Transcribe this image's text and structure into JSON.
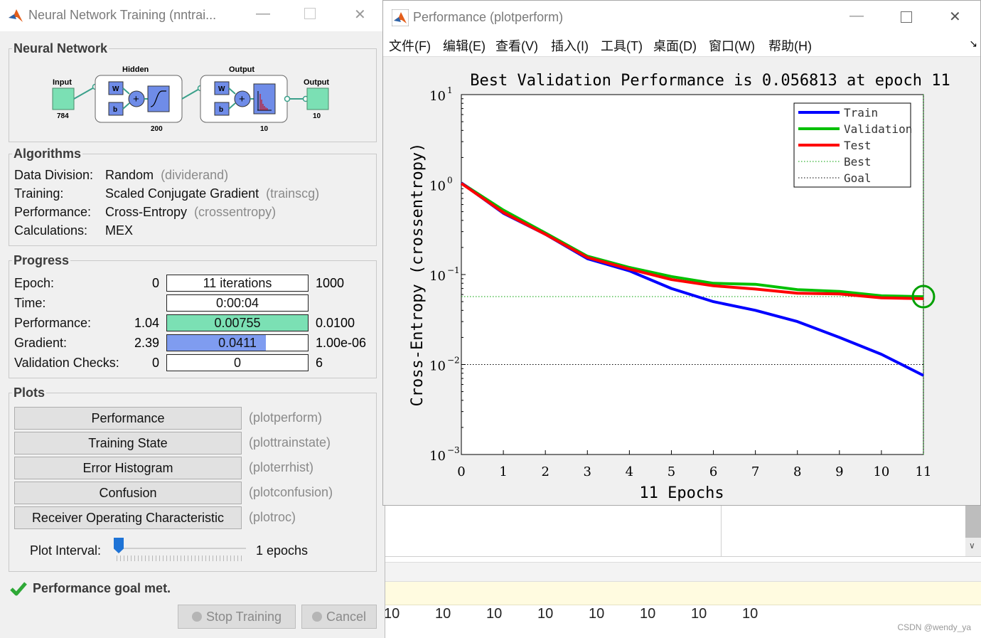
{
  "nntraintool": {
    "title": "Neural Network Training (nntrai...",
    "network": {
      "legend": "Neural Network",
      "input_label": "Input",
      "input_size": "784",
      "hidden_label": "Hidden",
      "hidden_size": "200",
      "output_layer_label": "Output",
      "output_layer_size": "10",
      "output_label": "Output",
      "output_size": "10",
      "w": "W",
      "b": "b",
      "plus": "+"
    },
    "algorithms": {
      "legend": "Algorithms",
      "rows": [
        {
          "label": "Data Division:",
          "value": "Random",
          "fn": "(dividerand)"
        },
        {
          "label": "Training:",
          "value": "Scaled Conjugate Gradient",
          "fn": "(trainscg)"
        },
        {
          "label": "Performance:",
          "value": "Cross-Entropy",
          "fn": "(crossentropy)"
        },
        {
          "label": "Calculations:",
          "value": "MEX",
          "fn": ""
        }
      ]
    },
    "progress": {
      "legend": "Progress",
      "rows": [
        {
          "label": "Epoch:",
          "left": "0",
          "value": "11 iterations",
          "right": "1000",
          "fill": 0.011,
          "color": "#ffffff"
        },
        {
          "label": "Time:",
          "left": "",
          "value": "0:00:04",
          "right": "",
          "fill": 0,
          "color": "#ffffff"
        },
        {
          "label": "Performance:",
          "left": "1.04",
          "value": "0.00755",
          "right": "0.0100",
          "fill": 1.0,
          "color": "#7be0b4"
        },
        {
          "label": "Gradient:",
          "left": "2.39",
          "value": "0.0411",
          "right": "1.00e-06",
          "fill": 0.7,
          "color": "#7f9cf0"
        },
        {
          "label": "Validation Checks:",
          "left": "0",
          "value": "0",
          "right": "6",
          "fill": 0,
          "color": "#ffffff"
        }
      ]
    },
    "plots": {
      "legend": "Plots",
      "buttons": [
        {
          "label": "Performance",
          "cmd": "(plotperform)"
        },
        {
          "label": "Training State",
          "cmd": "(plottrainstate)"
        },
        {
          "label": "Error Histogram",
          "cmd": "(ploterrhist)"
        },
        {
          "label": "Confusion",
          "cmd": "(plotconfusion)"
        },
        {
          "label": "Receiver Operating Characteristic",
          "cmd": "(plotroc)"
        }
      ],
      "interval_label": "Plot Interval:",
      "interval_value": "1 epochs"
    },
    "status": "Performance goal met.",
    "stop_label": "Stop Training",
    "cancel_label": "Cancel"
  },
  "plotperform": {
    "title": "Performance (plotperform)",
    "menu": [
      "文件(F)",
      "编辑(E)",
      "查看(V)",
      "插入(I)",
      "工具(T)",
      "桌面(D)",
      "窗口(W)",
      "帮助(H)"
    ]
  },
  "background": {
    "numbers": [
      "10",
      "10",
      "10",
      "10",
      "10",
      "10",
      "10",
      "10"
    ],
    "watermark": "CSDN @wendy_ya"
  },
  "chart_data": {
    "type": "line",
    "title": "Best Validation Performance is 0.056813 at epoch 11",
    "xlabel": "11 Epochs",
    "ylabel": "Cross-Entropy  (crossentropy)",
    "yscale": "log",
    "xlim": [
      0,
      11
    ],
    "ylim": [
      0.001,
      10
    ],
    "x": [
      0,
      1,
      2,
      3,
      4,
      5,
      6,
      7,
      8,
      9,
      10,
      11
    ],
    "xticks": [
      "0",
      "1",
      "2",
      "3",
      "4",
      "5",
      "6",
      "7",
      "8",
      "9",
      "10",
      "11"
    ],
    "yticks": [
      {
        "value": 10,
        "base": "10",
        "exp": "1"
      },
      {
        "value": 1,
        "base": "10",
        "exp": "0"
      },
      {
        "value": 0.1,
        "base": "10",
        "exp": "−1"
      },
      {
        "value": 0.01,
        "base": "10",
        "exp": "−2"
      },
      {
        "value": 0.001,
        "base": "10",
        "exp": "−3"
      }
    ],
    "series": [
      {
        "name": "Train",
        "color": "#0000ff",
        "values": [
          1.04,
          0.48,
          0.28,
          0.15,
          0.11,
          0.07,
          0.05,
          0.04,
          0.03,
          0.02,
          0.013,
          0.00755
        ]
      },
      {
        "name": "Validation",
        "color": "#00c000",
        "values": [
          1.04,
          0.52,
          0.29,
          0.16,
          0.12,
          0.095,
          0.08,
          0.078,
          0.068,
          0.065,
          0.058,
          0.0568
        ]
      },
      {
        "name": "Test",
        "color": "#ff0000",
        "values": [
          1.03,
          0.49,
          0.28,
          0.155,
          0.115,
          0.088,
          0.075,
          0.069,
          0.062,
          0.061,
          0.055,
          0.054
        ]
      }
    ],
    "best": {
      "name": "Best",
      "epoch": 11,
      "value": 0.056813,
      "color": "#00a000"
    },
    "goal": {
      "name": "Goal",
      "value": 0.01,
      "color": "#000000"
    },
    "legend_position": "top-right",
    "grid": false
  }
}
